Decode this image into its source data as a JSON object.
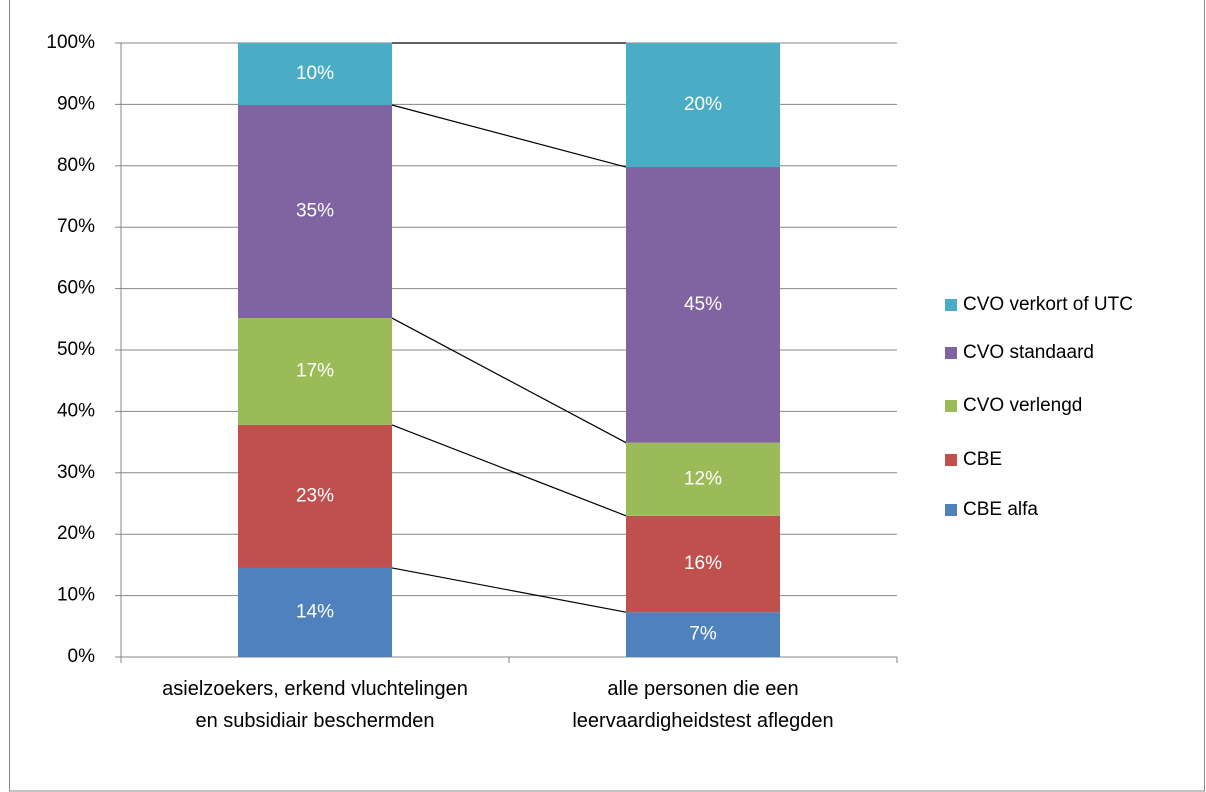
{
  "chart_data": {
    "type": "stacked_bar_100",
    "categories": [
      "asielzoekers, erkend vluchtelingen en subsidiair beschermden",
      "alle personen die een leervaardigheidstest aflegden"
    ],
    "series": [
      {
        "name": "CBE alfa",
        "color": "#4f81bd",
        "values": [
          14.5,
          7.3
        ],
        "value_labels": [
          "14%",
          "7%"
        ]
      },
      {
        "name": "CBE",
        "color": "#c0504d",
        "values": [
          23.3,
          15.7
        ],
        "value_labels": [
          "23%",
          "16%"
        ]
      },
      {
        "name": "CVO verlengd",
        "color": "#9bbb59",
        "values": [
          17.4,
          11.9
        ],
        "value_labels": [
          "17%",
          "12%"
        ]
      },
      {
        "name": "CVO standaard",
        "color": "#8064a2",
        "values": [
          34.7,
          44.9
        ],
        "value_labels": [
          "35%",
          "45%"
        ]
      },
      {
        "name": "CVO verkort of UTC",
        "color": "#4bacc6",
        "values": [
          10.1,
          20.2
        ],
        "value_labels": [
          "10%",
          "20%"
        ]
      }
    ],
    "ylim": [
      0,
      100
    ],
    "yticks": [
      {
        "value": 0,
        "label": "0%"
      },
      {
        "value": 10,
        "label": "10%"
      },
      {
        "value": 20,
        "label": "20%"
      },
      {
        "value": 30,
        "label": "30%"
      },
      {
        "value": 40,
        "label": "40%"
      },
      {
        "value": 50,
        "label": "50%"
      },
      {
        "value": 60,
        "label": "60%"
      },
      {
        "value": 70,
        "label": "70%"
      },
      {
        "value": 80,
        "label": "80%"
      },
      {
        "value": 90,
        "label": "90%"
      },
      {
        "value": 100,
        "label": "100%"
      }
    ],
    "grid": true,
    "legend": "right",
    "series_lines": true
  }
}
